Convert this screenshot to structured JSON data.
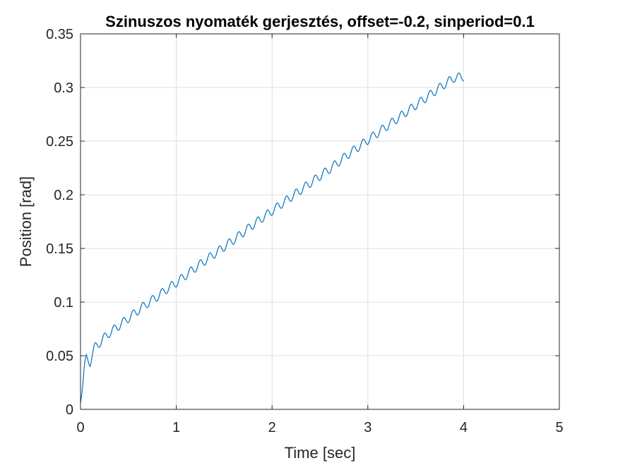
{
  "chart_data": {
    "type": "line",
    "title": "Szinuszos nyomaték gerjesztés, offset=-0.2, sinperiod=0.1",
    "xlabel": "Time [sec]",
    "ylabel": "Position [rad]",
    "xlim": [
      0,
      5
    ],
    "ylim": [
      0,
      0.35
    ],
    "xticks": [
      0,
      1,
      2,
      3,
      4,
      5
    ],
    "yticks": [
      0,
      0.05,
      0.1,
      0.15,
      0.2,
      0.25,
      0.3,
      0.35
    ],
    "xtick_labels": [
      "0",
      "1",
      "2",
      "3",
      "4",
      "5"
    ],
    "ytick_labels": [
      "0",
      "0.05",
      "0.1",
      "0.15",
      "0.2",
      "0.25",
      "0.3",
      "0.35"
    ],
    "grid": true,
    "series": [
      {
        "color": "#0072BD",
        "x": [
          0,
          0.02,
          0.04,
          0.06,
          0.08,
          0.1,
          0.12,
          0.15,
          0.2,
          0.25,
          0.3,
          0.4,
          0.5,
          0.6,
          0.7,
          0.8,
          0.9,
          1.0,
          1.2,
          1.4,
          1.6,
          1.8,
          2.0,
          2.2,
          2.4,
          2.6,
          2.8,
          3.0,
          3.2,
          3.4,
          3.6,
          3.8,
          3.9,
          4.0
        ],
        "y": [
          0.006,
          0.02,
          0.038,
          0.048,
          0.046,
          0.044,
          0.05,
          0.058,
          0.062,
          0.067,
          0.071,
          0.078,
          0.085,
          0.092,
          0.099,
          0.105,
          0.112,
          0.118,
          0.132,
          0.145,
          0.158,
          0.172,
          0.185,
          0.198,
          0.211,
          0.224,
          0.238,
          0.251,
          0.264,
          0.277,
          0.29,
          0.303,
          0.309,
          0.31
        ]
      }
    ],
    "oscillation": {
      "period": 0.1,
      "amplitude": 0.004
    }
  }
}
